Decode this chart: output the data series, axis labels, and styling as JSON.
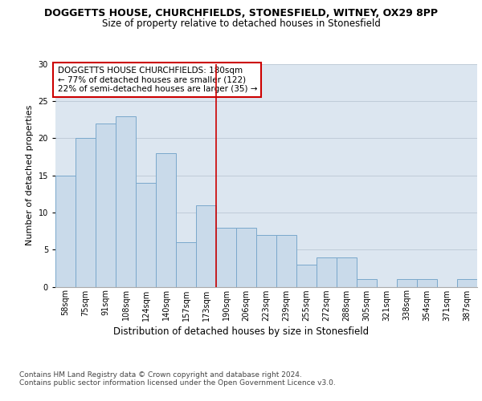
{
  "title": "DOGGETTS HOUSE, CHURCHFIELDS, STONESFIELD, WITNEY, OX29 8PP",
  "subtitle": "Size of property relative to detached houses in Stonesfield",
  "xlabel": "Distribution of detached houses by size in Stonesfield",
  "ylabel": "Number of detached properties",
  "categories": [
    "58sqm",
    "75sqm",
    "91sqm",
    "108sqm",
    "124sqm",
    "140sqm",
    "157sqm",
    "173sqm",
    "190sqm",
    "206sqm",
    "223sqm",
    "239sqm",
    "255sqm",
    "272sqm",
    "288sqm",
    "305sqm",
    "321sqm",
    "338sqm",
    "354sqm",
    "371sqm",
    "387sqm"
  ],
  "values": [
    15,
    20,
    22,
    23,
    14,
    18,
    6,
    11,
    8,
    8,
    7,
    7,
    3,
    4,
    4,
    1,
    0,
    1,
    1,
    0,
    1
  ],
  "bar_color": "#c9daea",
  "bar_edge_color": "#7aa8cc",
  "vline_x": 7.5,
  "vline_color": "#cc0000",
  "annotation_box_text": "DOGGETTS HOUSE CHURCHFIELDS: 180sqm\n← 77% of detached houses are smaller (122)\n22% of semi-detached houses are larger (35) →",
  "annotation_box_color": "#cc0000",
  "ylim": [
    0,
    30
  ],
  "yticks": [
    0,
    5,
    10,
    15,
    20,
    25,
    30
  ],
  "grid_color": "#d0d8e4",
  "background_color": "#dce6f0",
  "footer_text": "Contains HM Land Registry data © Crown copyright and database right 2024.\nContains public sector information licensed under the Open Government Licence v3.0.",
  "title_fontsize": 9,
  "subtitle_fontsize": 8.5,
  "xlabel_fontsize": 8.5,
  "ylabel_fontsize": 8,
  "tick_fontsize": 7,
  "annotation_fontsize": 7.5,
  "footer_fontsize": 6.5
}
